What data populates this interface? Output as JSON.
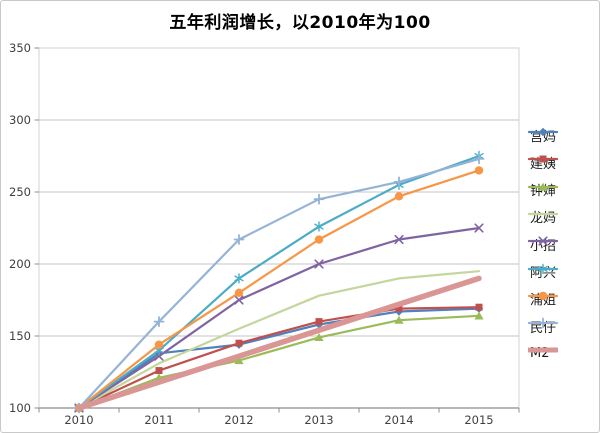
{
  "chart_data": {
    "type": "line",
    "title": "五年利润增长，以2010年为100",
    "categories": [
      "2010",
      "2011",
      "2012",
      "2013",
      "2014",
      "2015"
    ],
    "y_ticks": [
      100,
      150,
      200,
      250,
      300,
      350
    ],
    "ylim": [
      100,
      350
    ],
    "grid": "horizontal",
    "legend_position": "right",
    "series": [
      {
        "name": "宫妈",
        "color": "#4F81BD",
        "marker": "diamond",
        "width": 2.2,
        "values": [
          100,
          138,
          144,
          158,
          167,
          169
        ]
      },
      {
        "name": "建姨",
        "color": "#C0504D",
        "marker": "square",
        "width": 2.2,
        "values": [
          100,
          126,
          145,
          160,
          169,
          170
        ]
      },
      {
        "name": "钟婶",
        "color": "#9BBB59",
        "marker": "triangle",
        "width": 2.2,
        "values": [
          100,
          121,
          133,
          149,
          161,
          164
        ]
      },
      {
        "name": "龙妈",
        "color": "#C3D69B",
        "marker": "none",
        "width": 2.2,
        "values": [
          100,
          131,
          155,
          178,
          190,
          195
        ]
      },
      {
        "name": "小招",
        "color": "#8064A2",
        "marker": "x",
        "width": 2.2,
        "values": [
          100,
          136,
          175,
          200,
          217,
          225
        ]
      },
      {
        "name": "阿兴",
        "color": "#4BACC6",
        "marker": "asterisk",
        "width": 2.2,
        "values": [
          100,
          140,
          190,
          226,
          255,
          275
        ]
      },
      {
        "name": "浦姐",
        "color": "#F79646",
        "marker": "circle",
        "width": 2.2,
        "values": [
          100,
          144,
          180,
          217,
          247,
          265
        ]
      },
      {
        "name": "民仔",
        "color": "#95B3D7",
        "marker": "plus",
        "width": 2.2,
        "values": [
          100,
          160,
          217,
          245,
          257,
          273
        ]
      },
      {
        "name": "M2",
        "color": "#D99694",
        "marker": "none",
        "width": 5.5,
        "values": [
          100,
          118,
          136,
          154,
          172,
          190
        ]
      }
    ]
  },
  "palette": {
    "plot_border": "#D3D3D3",
    "gridline": "#C6C6C6",
    "axis_line": "#8C8C8C",
    "tick_label": "#3F3F3F",
    "background": "#FFFFFF"
  }
}
